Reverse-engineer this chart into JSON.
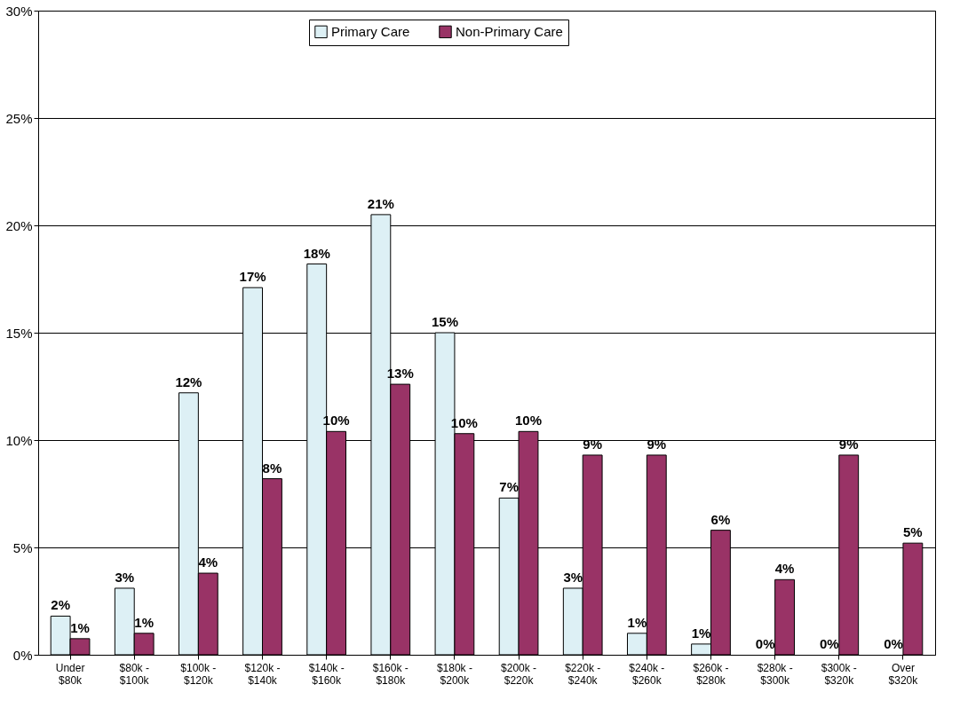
{
  "chart_data": {
    "type": "bar",
    "categories": [
      "Under\n$80k",
      "$80k -\n$100k",
      "$100k -\n$120k",
      "$120k -\n$140k",
      "$140k -\n$160k",
      "$160k -\n$180k",
      "$180k -\n$200k",
      "$200k -\n$220k",
      "$220k -\n$240k",
      "$240k -\n$260k",
      "$260k -\n$280k",
      "$280k -\n$300k",
      "$300k -\n$320k",
      "Over\n$320k"
    ],
    "series": [
      {
        "name": "Primary Care",
        "color": "#ddf0f5",
        "values": [
          1.8,
          3.1,
          12.2,
          17.1,
          18.2,
          20.5,
          15.0,
          7.3,
          3.1,
          1.0,
          0.5,
          0,
          0,
          0
        ],
        "value_labels": [
          "2%",
          "3%",
          "12%",
          "17%",
          "18%",
          "21%",
          "15%",
          "7%",
          "3%",
          "1%",
          "1%",
          "0%",
          "0%",
          "0%"
        ]
      },
      {
        "name": "Non-Primary Care",
        "color": "#993366",
        "values": [
          0.75,
          1.0,
          3.8,
          8.2,
          10.4,
          12.6,
          10.3,
          10.4,
          9.3,
          9.3,
          5.8,
          3.5,
          9.3,
          5.2
        ],
        "value_labels": [
          "1%",
          "1%",
          "4%",
          "8%",
          "10%",
          "13%",
          "10%",
          "10%",
          "9%",
          "9%",
          "6%",
          "4%",
          "9%",
          "5%"
        ]
      }
    ],
    "ylim": [
      0,
      30
    ],
    "yticks": [
      {
        "value": 0,
        "label": "0%"
      },
      {
        "value": 5,
        "label": "5%"
      },
      {
        "value": 10,
        "label": "10%"
      },
      {
        "value": 15,
        "label": "15%"
      },
      {
        "value": 20,
        "label": "20%"
      },
      {
        "value": 25,
        "label": "25%"
      },
      {
        "value": 30,
        "label": "30%"
      }
    ],
    "grid": "y",
    "legend": "top"
  }
}
